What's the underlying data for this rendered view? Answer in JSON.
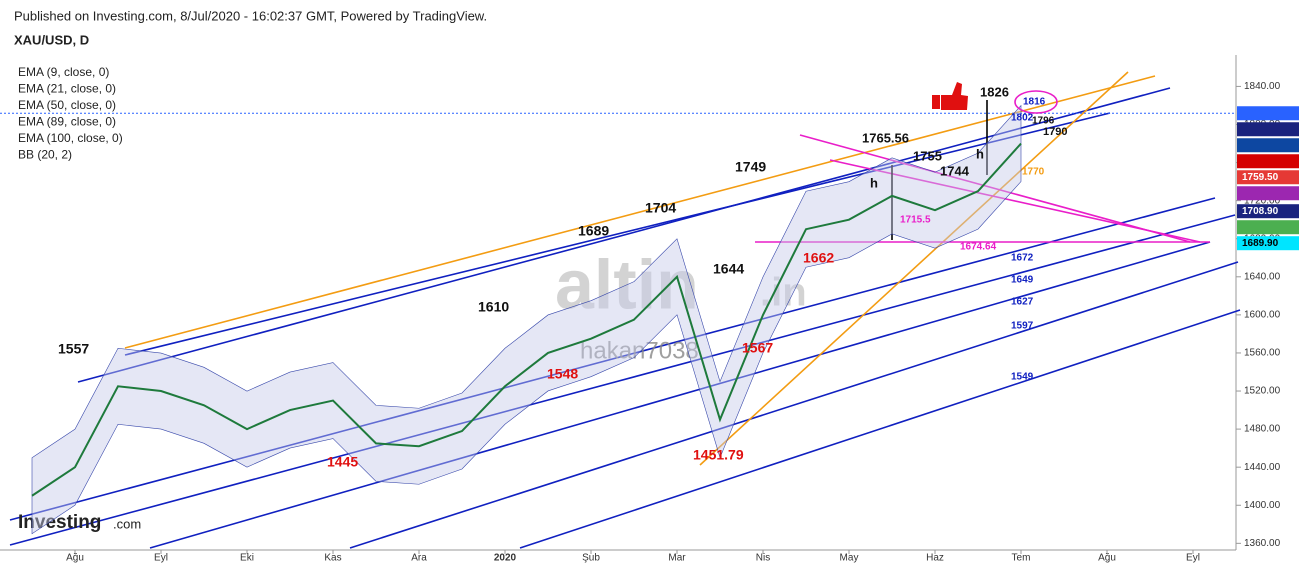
{
  "chart_data": {
    "type": "line",
    "title": "Published on Investing.com, 8/Jul/2020 - 16:02:37 GMT, Powered by TradingView.",
    "subtitle": "XAU/USD, D",
    "legend": [
      "EMA (9, close, 0)",
      "EMA (21, close, 0)",
      "EMA (50, close, 0)",
      "EMA (89, close, 0)",
      "EMA (100, close, 0)",
      "BB (20, 2)"
    ],
    "categories": [
      null,
      "Ağu",
      null,
      "Eyl",
      null,
      "Eki",
      null,
      "Kas",
      null,
      "Ara",
      null,
      "2020",
      null,
      "Şub",
      null,
      "Mar",
      null,
      "Nis",
      null,
      "May",
      null,
      "Haz",
      null,
      "Tem",
      null,
      "Ağu",
      null,
      "Eyl"
    ],
    "values": [
      1410,
      1440,
      1525,
      1520,
      1505,
      1480,
      1500,
      1510,
      1465,
      1462,
      1478,
      1525,
      1560,
      1575,
      1595,
      1640,
      1490,
      1600,
      1690,
      1700,
      1725,
      1710,
      1730,
      1780,
      null,
      null,
      null,
      null
    ],
    "color": "#1e7a3c",
    "ylim": [
      1353,
      1873
    ],
    "yticks": [
      {
        "value": 1360,
        "label": "1360.00"
      },
      {
        "value": 1400,
        "label": "1400.00"
      },
      {
        "value": 1440,
        "label": "1440.00"
      },
      {
        "value": 1480,
        "label": "1480.00"
      },
      {
        "value": 1520,
        "label": "1520.00"
      },
      {
        "value": 1560,
        "label": "1560.00"
      },
      {
        "value": 1600,
        "label": "1600.00"
      },
      {
        "value": 1640,
        "label": "1640.00"
      },
      {
        "value": 1680,
        "label": "1680.00"
      },
      {
        "value": 1720,
        "label": "1720.00"
      },
      {
        "value": 1760,
        "label": "1760.00"
      },
      {
        "value": 1800,
        "label": "1800.00"
      },
      {
        "value": 1840,
        "label": "1840.00"
      }
    ],
    "price_tags": [
      {
        "value": 1811.81,
        "color": "#2962ff"
      },
      {
        "value": 1810.11,
        "color": "#1a237e"
      },
      {
        "value": 1783.02,
        "color": "#0d47a1"
      },
      {
        "value": 1763.63,
        "color": "#d50000"
      },
      {
        "value": 1759.5,
        "label": "1759.50",
        "color": "#e53935"
      },
      {
        "value": 1733.82,
        "color": "#9c27b0"
      },
      {
        "value": 1708.9,
        "label": "1708.90",
        "color": "#1a237e"
      },
      {
        "value": 1698.83,
        "color": "#4caf50"
      },
      {
        "value": 1689.9,
        "label": "1689.90",
        "color": "#00e5ff"
      }
    ],
    "annotations": [
      "1557",
      "1610",
      "1689",
      "1704",
      "1749",
      "1644",
      "1765.56",
      "1755",
      "1744",
      "1826",
      "1816",
      "1802",
      "1796",
      "1790",
      "1770",
      "h",
      "h",
      "1715.5",
      "1674.64",
      "1672",
      "1649",
      "1627",
      "1597",
      "1549",
      "1548",
      "1445",
      "1451.79",
      "1567",
      "1662"
    ],
    "watermarks": [
      "Investing",
      ".com",
      "altin",
      ".in",
      "hakan7038"
    ]
  }
}
